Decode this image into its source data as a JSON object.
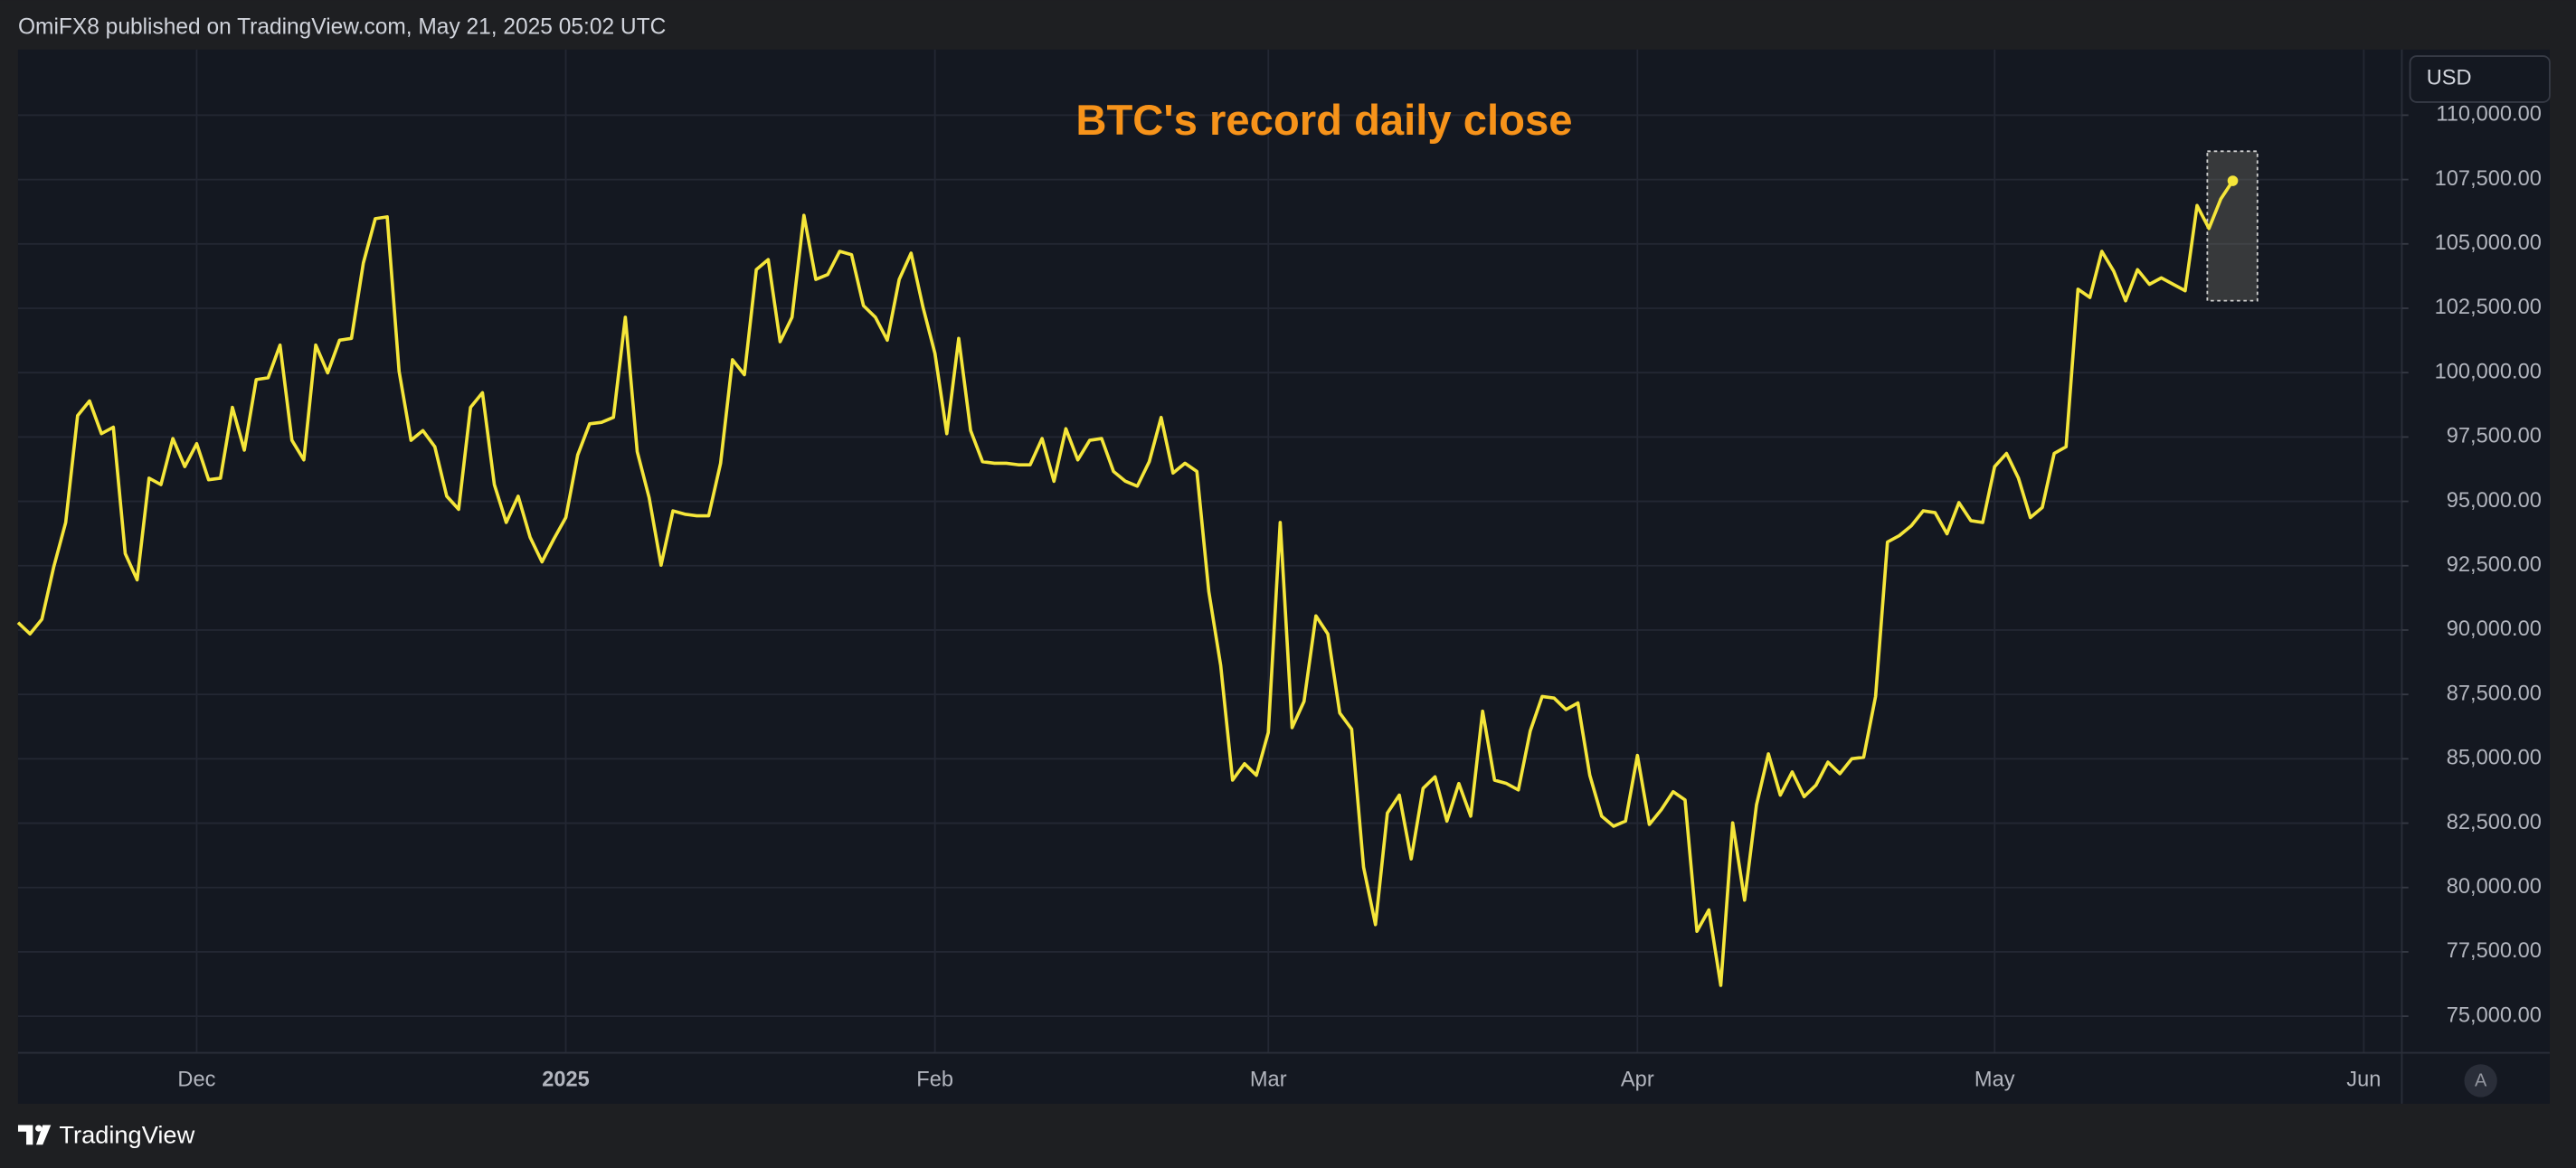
{
  "header": "OmiFX8 published on TradingView.com, May 21, 2025 05:02 UTC",
  "controls": {
    "currency": "USD",
    "auto": "A"
  },
  "footer": {
    "brand": "TradingView"
  },
  "chart_data": {
    "type": "line",
    "title": "BTC's record daily close",
    "title_color": "#f7931a",
    "color": "#f5e63a",
    "grid": true,
    "last_point_marker": true,
    "values": [
      90290,
      89850,
      90420,
      92460,
      94180,
      98330,
      98900,
      97630,
      97880,
      92970,
      91950,
      95900,
      95650,
      97440,
      96350,
      97240,
      95840,
      95900,
      98650,
      96990,
      99730,
      99800,
      101070,
      97370,
      96610,
      101070,
      99990,
      101260,
      101330,
      104260,
      105980,
      106050,
      100050,
      97370,
      97750,
      97120,
      95200,
      94690,
      98650,
      99220,
      95650,
      94180,
      95200,
      93610,
      92650,
      93540,
      94370,
      96800,
      98010,
      98070,
      98260,
      102150,
      96930,
      95140,
      92520,
      94630,
      94500,
      94440,
      94440,
      96480,
      100500,
      99920,
      104000,
      104390,
      101200,
      102150,
      106110,
      103620,
      103810,
      104710,
      104580,
      102600,
      102150,
      101260,
      103620,
      104640,
      102540,
      100750,
      97630,
      101330,
      97750,
      96540,
      96480,
      96480,
      96420,
      96420,
      97440,
      95780,
      97820,
      96610,
      97370,
      97440,
      96160,
      95780,
      95590,
      96540,
      98260,
      96100,
      96480,
      96160,
      91500,
      88630,
      84170,
      84810,
      84360,
      86020,
      94180,
      86210,
      87230,
      90550,
      89850,
      86780,
      86150,
      80790,
      78560,
      82890,
      83590,
      81110,
      83850,
      84300,
      82580,
      84040,
      82770,
      86850,
      84170,
      84040,
      83790,
      86080,
      87420,
      87360,
      86910,
      87170,
      84360,
      82770,
      82380,
      82580,
      85130,
      82450,
      83020,
      83720,
      83400,
      78300,
      79130,
      76200,
      82510,
      79510,
      83210,
      85190,
      83590,
      84490,
      83530,
      83980,
      84870,
      84420,
      85000,
      85060,
      87420,
      93420,
      93670,
      94050,
      94630,
      94560,
      93740,
      94950,
      94250,
      94180,
      96350,
      96860,
      95900,
      94370,
      94760,
      96860,
      97120,
      103240,
      102920,
      104710,
      103940,
      102790,
      104000,
      103430,
      103680,
      103430,
      103180,
      106490,
      105600,
      106750,
      107450
    ],
    "xlim": [
      0,
      200.2
    ],
    "xticks": [
      {
        "value": 15,
        "label": "Dec"
      },
      {
        "value": 46,
        "label": "2025"
      },
      {
        "value": 77,
        "label": "Feb"
      },
      {
        "value": 105,
        "label": "Mar"
      },
      {
        "value": 136,
        "label": "Apr"
      },
      {
        "value": 166,
        "label": "May"
      },
      {
        "value": 197,
        "label": "Jun"
      }
    ],
    "ylim": [
      73580,
      112550
    ],
    "yticks": [
      {
        "value": 75000,
        "label": "75,000.00"
      },
      {
        "value": 77500,
        "label": "77,500.00"
      },
      {
        "value": 80000,
        "label": "80,000.00"
      },
      {
        "value": 82500,
        "label": "82,500.00"
      },
      {
        "value": 85000,
        "label": "85,000.00"
      },
      {
        "value": 87500,
        "label": "87,500.00"
      },
      {
        "value": 90000,
        "label": "90,000.00"
      },
      {
        "value": 92500,
        "label": "92,500.00"
      },
      {
        "value": 95000,
        "label": "95,000.00"
      },
      {
        "value": 97500,
        "label": "97,500.00"
      },
      {
        "value": 100000,
        "label": "100,000.00"
      },
      {
        "value": 102500,
        "label": "102,500.00"
      },
      {
        "value": 105000,
        "label": "105,000.00"
      },
      {
        "value": 107500,
        "label": "107,500.00"
      },
      {
        "value": 110000,
        "label": "110,000.00"
      }
    ]
  }
}
